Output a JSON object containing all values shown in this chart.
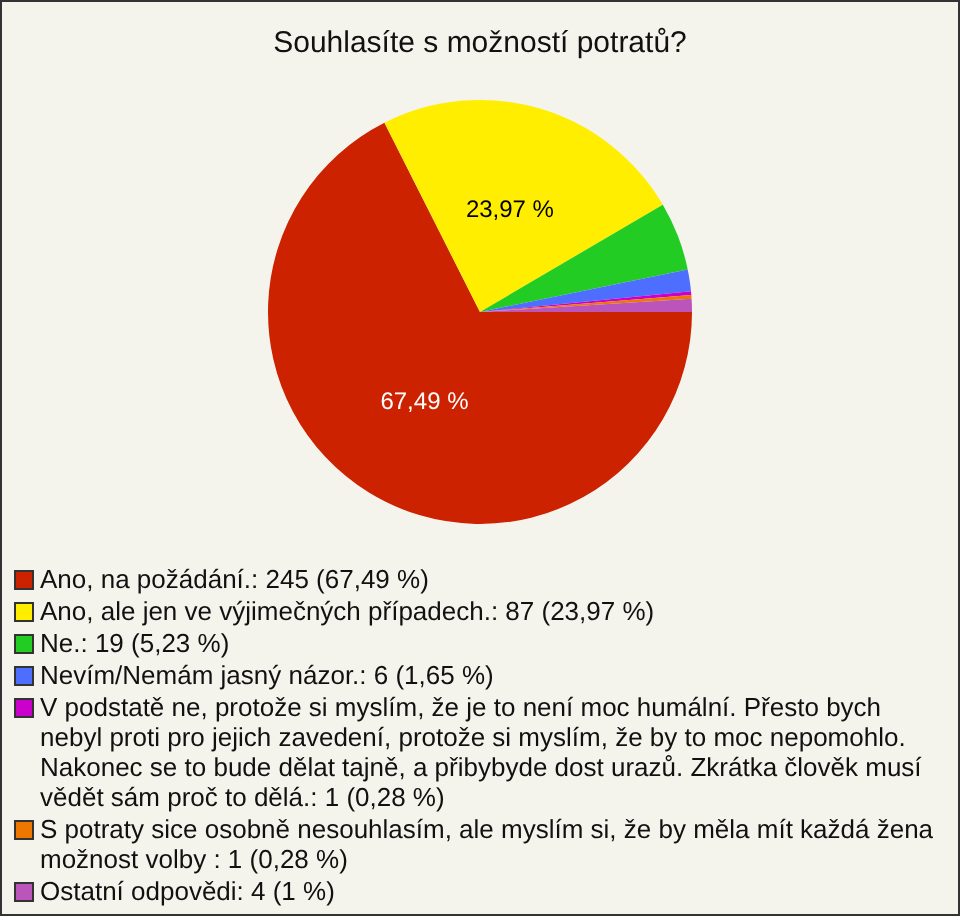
{
  "chart_data": {
    "type": "pie",
    "title": "Souhlasíte s možností potratů?",
    "categories": [
      "Ano, na požádání.: 245 (67,49 %)",
      "Ano, ale jen ve výjimečných případech.: 87 (23,97 %)",
      "Ne.: 19 (5,23 %)",
      "Nevím/Nemám jasný názor.: 6 (1,65 %)",
      "V podstatě ne, protože si myslím, že je to není moc humální. Přesto bych nebyl proti pro jejich zavedení, protože si myslím, že by to moc nepomohlo. Nakonec se to bude dělat tajně, a přibybyde dost urazů. Zkrátka člověk musí vědět sám proč to dělá.: 1 (0,28 %)",
      "S potraty sice osobně nesouhlasím, ale myslím si, že by měla mít každá žena možnost volby : 1 (0,28 %)",
      "Ostatní odpovědi: 4 (1 %)"
    ],
    "values": [
      67.49,
      23.97,
      5.23,
      1.65,
      0.28,
      0.28,
      1
    ],
    "colors": [
      "#cc2200",
      "#ffee00",
      "#22cc22",
      "#4d6eff",
      "#cc00cc",
      "#ee7700",
      "#bb55bb"
    ],
    "value_labels": [
      "67,49 %",
      "23,97 %",
      null,
      null,
      null,
      null,
      null
    ],
    "legend": "bottom"
  }
}
